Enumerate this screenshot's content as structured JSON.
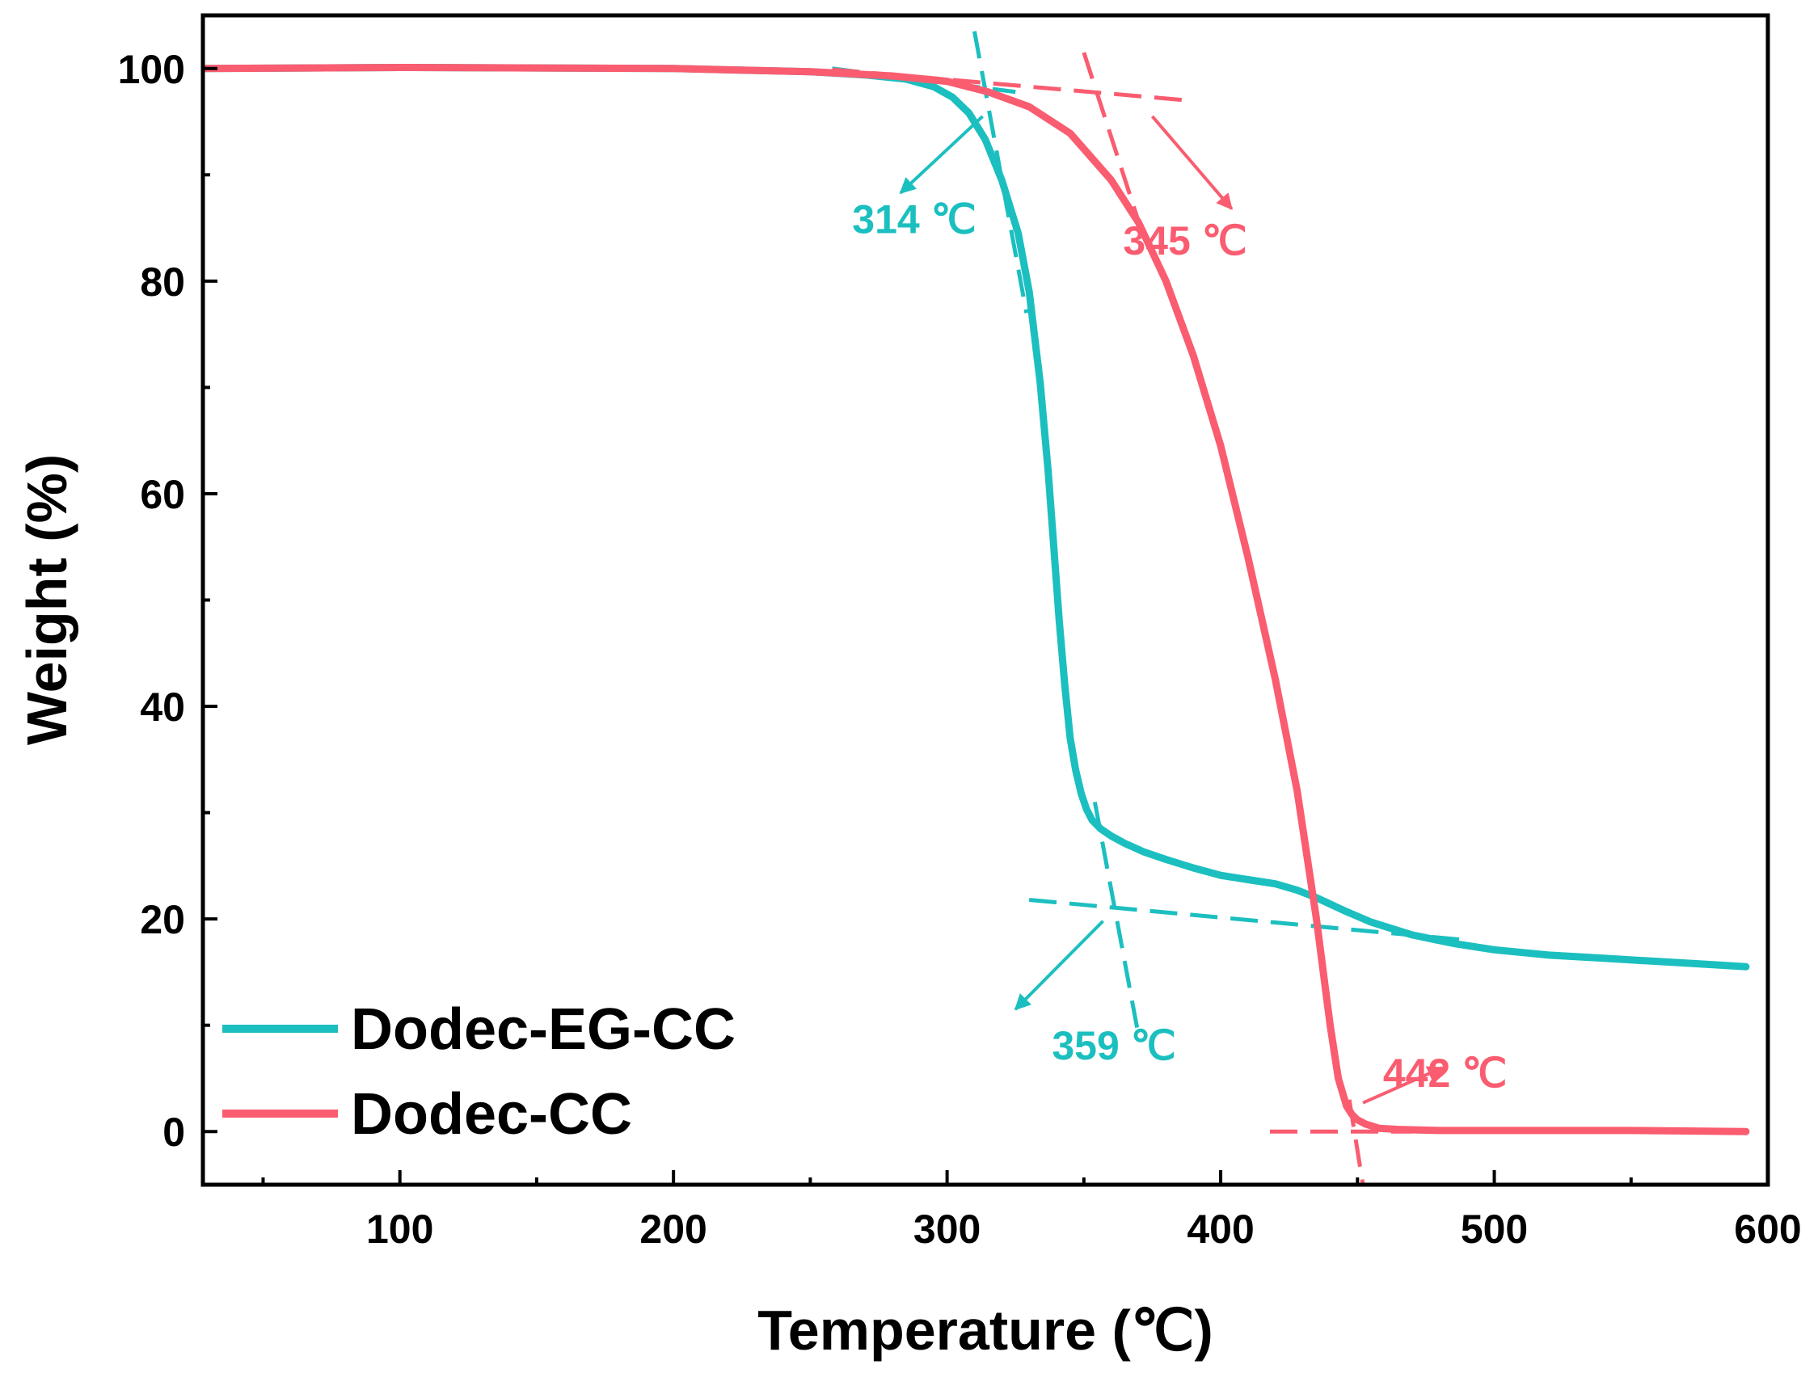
{
  "chart_data": {
    "type": "line",
    "title": "",
    "xlabel": "Temperature (℃)",
    "ylabel": "Weight (%)",
    "xlim": [
      28,
      600
    ],
    "ylim": [
      -5,
      105
    ],
    "xticks": [
      100,
      200,
      300,
      400,
      500,
      600
    ],
    "yticks": [
      0,
      20,
      40,
      60,
      80,
      100
    ],
    "grid": false,
    "legend_position": "bottom-left",
    "series": [
      {
        "name": "Dodec-EG-CC",
        "color": "#1cbfbf",
        "x": [
          28,
          100,
          200,
          250,
          270,
          285,
          295,
          302,
          308,
          314,
          320,
          326,
          330,
          334,
          337,
          339,
          341,
          343,
          345,
          347,
          349,
          351,
          353,
          356,
          360,
          365,
          372,
          380,
          390,
          400,
          410,
          420,
          428,
          435,
          445,
          455,
          470,
          485,
          500,
          520,
          540,
          560,
          580,
          592
        ],
        "y": [
          100,
          100.1,
          100,
          99.7,
          99.4,
          99,
          98.3,
          97.3,
          95.8,
          93.3,
          89.5,
          84.5,
          79,
          70.5,
          62,
          55,
          48,
          42,
          37,
          34,
          31.8,
          30.3,
          29.3,
          28.5,
          27.8,
          27.1,
          26.3,
          25.6,
          24.8,
          24.1,
          23.7,
          23.3,
          22.7,
          22,
          20.8,
          19.7,
          18.5,
          17.7,
          17.1,
          16.6,
          16.3,
          16,
          15.7,
          15.5
        ]
      },
      {
        "name": "Dodec-CC",
        "color": "#fa5c70",
        "x": [
          28,
          100,
          200,
          250,
          280,
          300,
          315,
          330,
          345,
          360,
          370,
          380,
          390,
          400,
          410,
          420,
          428,
          435,
          440,
          443,
          446,
          448,
          450,
          453,
          458,
          465,
          480,
          500,
          550,
          592
        ],
        "y": [
          100,
          100.1,
          100,
          99.7,
          99.3,
          98.8,
          97.8,
          96.4,
          93.9,
          89.5,
          85.5,
          80,
          73,
          64.5,
          54,
          42.5,
          32,
          20,
          10,
          5,
          2.4,
          1.6,
          1.1,
          0.7,
          0.3,
          0.2,
          0.1,
          0.1,
          0.1,
          0
        ]
      }
    ],
    "tangent_lines": [
      {
        "series": "Dodec-EG-CC",
        "from": [
          258,
          100
        ],
        "to": [
          325,
          97.8
        ]
      },
      {
        "series": "Dodec-EG-CC",
        "from": [
          310,
          103.5
        ],
        "to": [
          329,
          77
        ]
      },
      {
        "series": "Dodec-EG-CC",
        "from": [
          354,
          31
        ],
        "to": [
          370,
          9
        ]
      },
      {
        "series": "Dodec-EG-CC",
        "from": [
          330,
          21.8
        ],
        "to": [
          490,
          18
        ]
      },
      {
        "series": "Dodec-CC",
        "from": [
          258,
          99.9
        ],
        "to": [
          388,
          97
        ]
      },
      {
        "series": "Dodec-CC",
        "from": [
          350,
          101.5
        ],
        "to": [
          372,
          84
        ]
      },
      {
        "series": "Dodec-CC",
        "from": [
          418,
          0
        ],
        "to": [
          470,
          0
        ]
      },
      {
        "series": "Dodec-CC",
        "from": [
          447,
          3
        ],
        "to": [
          452,
          -5
        ]
      }
    ],
    "annotations": [
      {
        "text": "314 ℃",
        "color": "#1cbfbf",
        "x": 288,
        "y": 84.5,
        "arrow_from": [
          313,
          95.5
        ],
        "arrow_to": [
          283,
          88.3
        ]
      },
      {
        "text": "345 ℃",
        "color": "#fa5c70",
        "x": 387,
        "y": 82.5,
        "arrow_from": [
          375,
          95.5
        ],
        "arrow_to": [
          404,
          86.8
        ]
      },
      {
        "text": "359 ℃",
        "color": "#1cbfbf",
        "x": 361,
        "y": 6.8,
        "arrow_from": [
          357,
          19.8
        ],
        "arrow_to": [
          325,
          11.5
        ]
      },
      {
        "text": "442 ℃",
        "color": "#fa5c70",
        "x": 482,
        "y": 4.2,
        "arrow_from": [
          452,
          2.7
        ],
        "arrow_to": [
          481,
          6
        ]
      }
    ]
  }
}
